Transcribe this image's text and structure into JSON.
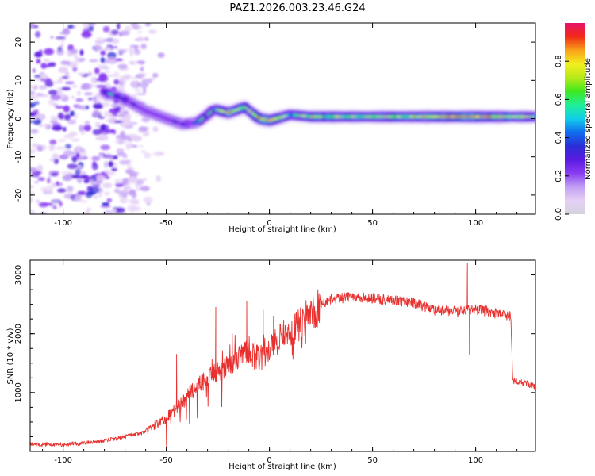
{
  "title": "PAZ1.2026.003.23.46.G24",
  "colors": {
    "snr_line": "#e8312f",
    "background": "#ffffff",
    "axis": "#000000",
    "colormap": [
      "#d4d2dc",
      "#e5d0f5",
      "#c19ff5",
      "#8a3cf2",
      "#5a1be0",
      "#2b2ed8",
      "#0f6ef0",
      "#12cfe8",
      "#1eef9a",
      "#3fe81e",
      "#b6ea18",
      "#f2ee1e",
      "#f8a21a",
      "#f02a16",
      "#e8106c"
    ]
  },
  "chart_data": [
    {
      "type": "heatmap",
      "title": "PAZ1.2026.003.23.46.G24",
      "xlabel": "Height of straight line (km)",
      "ylabel": "Frequency (Hz)",
      "xlim": [
        -116,
        129
      ],
      "ylim": [
        -25,
        25
      ],
      "xticks": [
        -100,
        -50,
        0,
        50,
        100
      ],
      "yticks": [
        -20,
        -10,
        0,
        10,
        20
      ],
      "grid": false,
      "colorbar": {
        "label": "Normalized spectral amplitude",
        "range": [
          0,
          1
        ],
        "ticks": [
          0.0,
          0.2,
          0.4,
          0.6,
          0.8
        ]
      },
      "ridge": {
        "description": "main frequency track",
        "x": [
          -80,
          -70,
          -60,
          -50,
          -42,
          -35,
          -30,
          -27,
          -20,
          -12,
          -5,
          0,
          10,
          20,
          50,
          100,
          129
        ],
        "y": [
          7,
          5,
          2,
          0,
          -1.5,
          -1,
          1,
          2.5,
          1.5,
          3,
          0,
          -0.5,
          1,
          0.5,
          0.5,
          0.5,
          0.5
        ],
        "peak_amplitude": [
          0.55,
          0.5,
          0.45,
          0.45,
          0.5,
          0.55,
          0.6,
          0.7,
          0.85,
          0.7,
          0.85,
          0.9,
          0.65,
          0.75,
          0.7,
          0.9,
          0.65
        ]
      },
      "noise_region": {
        "x_range": [
          -116,
          -70
        ],
        "y_range": [
          -25,
          25
        ]
      }
    },
    {
      "type": "line",
      "xlabel": "Height of straight line (km)",
      "ylabel": "SNR (10 * v/v)",
      "xlim": [
        -116,
        129
      ],
      "ylim": [
        0,
        3250
      ],
      "xticks": [
        -100,
        -50,
        0,
        50,
        100
      ],
      "yticks": [
        1000,
        2000,
        3000
      ],
      "grid": false,
      "series": [
        {
          "name": "SNR",
          "x": [
            -116,
            -100,
            -90,
            -80,
            -70,
            -60,
            -55,
            -50,
            -45,
            -40,
            -35,
            -30,
            -25,
            -20,
            -15,
            -10,
            -5,
            0,
            5,
            10,
            15,
            20,
            25,
            30,
            40,
            50,
            60,
            70,
            80,
            90,
            95,
            100,
            110,
            117,
            118,
            125,
            129
          ],
          "y": [
            120,
            120,
            140,
            180,
            250,
            330,
            450,
            560,
            750,
            950,
            1100,
            1250,
            1350,
            1450,
            1600,
            1700,
            1550,
            1800,
            1950,
            2050,
            2150,
            2350,
            2500,
            2600,
            2620,
            2600,
            2570,
            2520,
            2400,
            2380,
            2400,
            2420,
            2350,
            2300,
            1200,
            1150,
            1100
          ]
        }
      ],
      "spikes": {
        "x": [
          -45,
          -26,
          -18,
          -11,
          -7,
          -3,
          2,
          96,
          97
        ],
        "y": [
          1650,
          2450,
          2000,
          2550,
          1900,
          2400,
          2300,
          3200,
          1650
        ]
      }
    }
  ]
}
